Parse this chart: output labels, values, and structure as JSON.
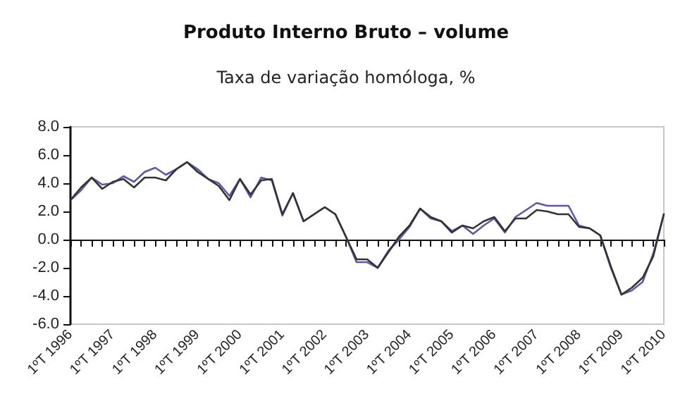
{
  "chart_data": {
    "type": "line",
    "title": "Produto Interno Bruto – volume",
    "subtitle": "Taxa de variação homóloga, %",
    "categories": [
      "1ºT 1996",
      null,
      null,
      null,
      "1ºT 1997",
      null,
      null,
      null,
      "1ºT 1998",
      null,
      null,
      null,
      "1ºT 1999",
      null,
      null,
      null,
      "1ºT 2000",
      null,
      null,
      null,
      "1ºT 2001",
      null,
      null,
      null,
      "1ºT 2002",
      null,
      null,
      null,
      "1ºT 2003",
      null,
      null,
      null,
      "1ºT 2004",
      null,
      null,
      null,
      "1ºT 2005",
      null,
      null,
      null,
      "1ºT 2006",
      null,
      null,
      null,
      "1ºT 2007",
      null,
      null,
      null,
      "1ºT 2008",
      null,
      null,
      null,
      "1ºT 2009",
      null,
      null,
      null,
      "1ºT 2010"
    ],
    "series": [
      {
        "color": "#5a5aa8",
        "values": [
          2.8,
          3.5,
          4.4,
          3.9,
          4.0,
          4.5,
          4.1,
          4.8,
          5.1,
          4.6,
          5.0,
          5.5,
          5.0,
          4.3,
          4.0,
          3.1,
          4.3,
          3.0,
          4.4,
          4.2,
          1.7,
          3.3,
          1.3,
          1.8,
          2.3,
          1.8,
          0.2,
          -1.6,
          -1.6,
          -2.0,
          -0.8,
          0.0,
          0.9,
          2.2,
          1.5,
          1.3,
          0.6,
          1.0,
          0.4,
          1.0,
          1.5,
          0.5,
          1.6,
          2.1,
          2.6,
          2.4,
          2.4,
          2.4,
          1.0,
          0.8,
          0.3,
          -2.0,
          -3.9,
          -3.6,
          -3.0,
          -1.0,
          1.8
        ]
      },
      {
        "color": "#333333",
        "values": [
          2.8,
          3.7,
          4.4,
          3.6,
          4.1,
          4.3,
          3.7,
          4.4,
          4.4,
          4.2,
          5.0,
          5.5,
          4.8,
          4.3,
          3.8,
          2.8,
          4.3,
          3.2,
          4.2,
          4.3,
          1.8,
          3.3,
          1.3,
          1.8,
          2.3,
          1.8,
          0.2,
          -1.4,
          -1.4,
          -2.0,
          -0.9,
          0.2,
          1.0,
          2.2,
          1.6,
          1.3,
          0.5,
          1.0,
          0.8,
          1.3,
          1.6,
          0.6,
          1.5,
          1.5,
          2.1,
          2.0,
          1.8,
          1.8,
          0.9,
          0.8,
          0.3,
          -1.9,
          -3.9,
          -3.4,
          -2.7,
          -1.2,
          1.8
        ]
      }
    ],
    "ylim": [
      -6,
      8
    ],
    "yticks": [
      {
        "value": -6,
        "label": "-6.0"
      },
      {
        "value": -4,
        "label": "-4.0"
      },
      {
        "value": -2,
        "label": "-2.0"
      },
      {
        "value": 0,
        "label": "0.0"
      },
      {
        "value": 2,
        "label": "2.0"
      },
      {
        "value": 4,
        "label": "4.0"
      },
      {
        "value": 6,
        "label": "6.0"
      },
      {
        "value": 8,
        "label": "8.0"
      }
    ],
    "marker": "none",
    "line_style": "solid"
  }
}
